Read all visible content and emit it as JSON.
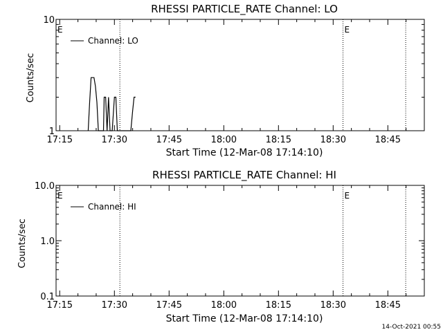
{
  "footer": {
    "timestamp": "14-Oct-2021 00:55"
  },
  "chart_data": [
    {
      "type": "line",
      "title": "RHESSI PARTICLE_RATE Channel: LO",
      "xlabel": "Start Time (12-Mar-08 17:14:10)",
      "ylabel": "Counts/sec",
      "yscale": "log",
      "ylim": [
        1,
        10
      ],
      "ytick_labels": [
        "1",
        "10"
      ],
      "xlim": [
        "17:14",
        "18:55"
      ],
      "xtick_labels": [
        "17:15",
        "17:30",
        "17:45",
        "18:00",
        "18:15",
        "18:30",
        "18:45"
      ],
      "grid": false,
      "legend": {
        "placement": "top-left",
        "entries": [
          "Channel: LO"
        ]
      },
      "event_lines": [
        {
          "time": "17:31.5",
          "label": ""
        },
        {
          "time": "18:32.7",
          "label": "E"
        },
        {
          "time": "18:49.9",
          "label": ""
        }
      ],
      "corner_label": "E",
      "series": [
        {
          "name": "Channel: LO",
          "x": [
            "17:22.8",
            "17:23.2",
            "17:23.6",
            "17:24.0",
            "17:24.4",
            "17:24.8",
            "17:25.2",
            "17:25.6",
            "17:26.0",
            "17:27.0",
            "17:27.2",
            "17:27.6",
            "17:28.0",
            "17:28.4",
            "17:28.8",
            "17:29.4",
            "17:30.0",
            "17:30.4",
            "17:30.8",
            "17:31.2",
            "17:34.5",
            "17:35.0",
            "17:35.4",
            "17:35.8"
          ],
          "y": [
            1,
            1.8,
            3,
            3,
            3,
            2.5,
            1.8,
            1,
            1,
            1,
            2,
            2,
            1,
            2,
            1,
            1,
            2,
            2,
            1,
            1,
            1,
            1.5,
            2,
            2
          ]
        }
      ]
    },
    {
      "type": "line",
      "title": "RHESSI PARTICLE_RATE Channel: HI",
      "xlabel": "Start Time (12-Mar-08 17:14:10)",
      "ylabel": "Counts/sec",
      "yscale": "log",
      "ylim": [
        0.1,
        10
      ],
      "ytick_labels": [
        "0.1",
        "1.0",
        "10.0"
      ],
      "xlim": [
        "17:14",
        "18:55"
      ],
      "xtick_labels": [
        "17:15",
        "17:30",
        "17:45",
        "18:00",
        "18:15",
        "18:30",
        "18:45"
      ],
      "grid": false,
      "legend": {
        "placement": "top-left",
        "entries": [
          "Channel: HI"
        ]
      },
      "event_lines": [
        {
          "time": "17:31.5",
          "label": ""
        },
        {
          "time": "18:32.7",
          "label": "E"
        },
        {
          "time": "18:49.9",
          "label": ""
        }
      ],
      "corner_label": "E",
      "series": [
        {
          "name": "Channel: HI",
          "x": [],
          "y": []
        }
      ]
    }
  ]
}
